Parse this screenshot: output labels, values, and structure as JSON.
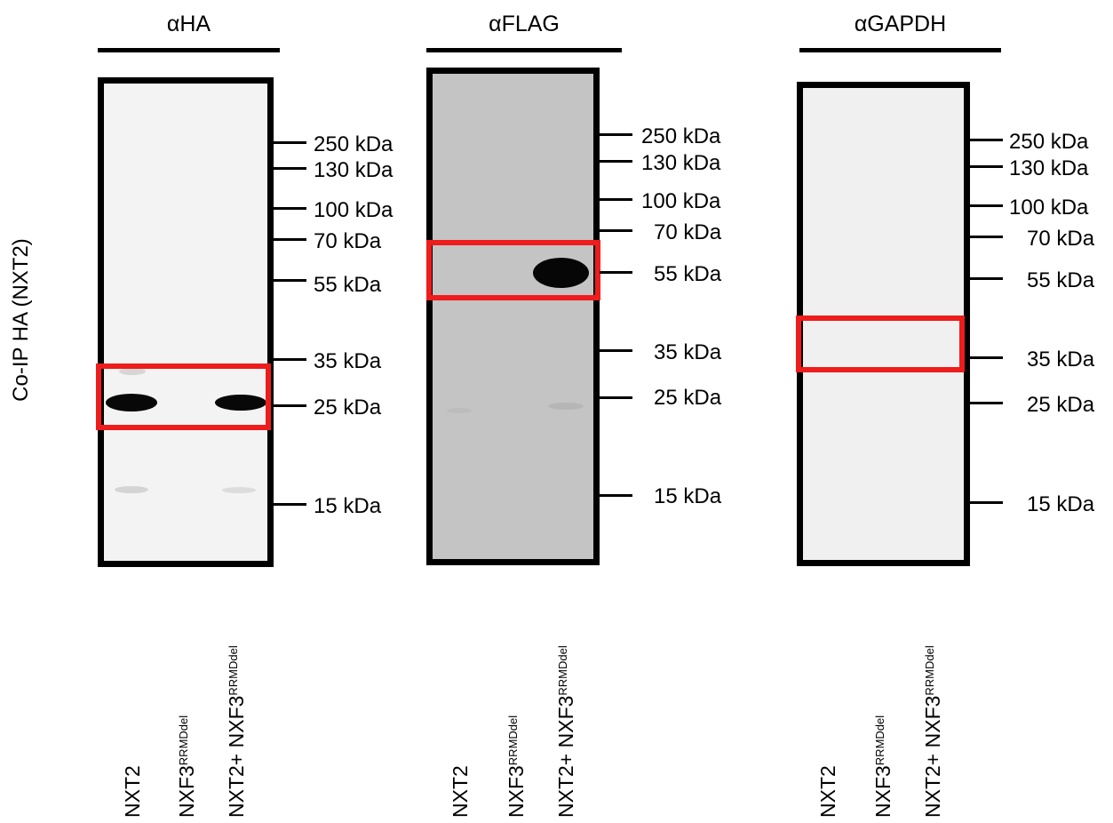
{
  "y_label": "Co-IP HA (NXT2)",
  "lanes": [
    {
      "name": "NXT2",
      "sup": ""
    },
    {
      "name": "NXF3",
      "sup": "RRMDdel"
    },
    {
      "name": "NXT2+ NXF3",
      "sup": "RRMDdel"
    }
  ],
  "panels": [
    {
      "title": "αHA",
      "background": "#f3f3f3",
      "markers": [
        "250 kDa",
        "130 kDa",
        "100 kDa",
        "70 kDa",
        "55 kDa",
        "35 kDa",
        "25 kDa",
        "15 kDa"
      ]
    },
    {
      "title": "αFLAG",
      "background": "#c4c4c4",
      "markers": [
        "250 kDa",
        "130 kDa",
        "100 kDa",
        "70 kDa",
        "55 kDa",
        "35 kDa",
        "25 kDa",
        "15 kDa"
      ]
    },
    {
      "title": "αGAPDH",
      "background": "#f0f0f0",
      "markers": [
        "250 kDa",
        "130 kDa",
        "100 kDa",
        "70 kDa",
        "55 kDa",
        "35 kDa",
        "25 kDa",
        "15 kDa"
      ]
    }
  ],
  "colors": {
    "highlight_box": "#ee1c1c",
    "blot_frame": "#000000",
    "strong_band": "#080808",
    "faint_band": "#d0d0d0"
  }
}
